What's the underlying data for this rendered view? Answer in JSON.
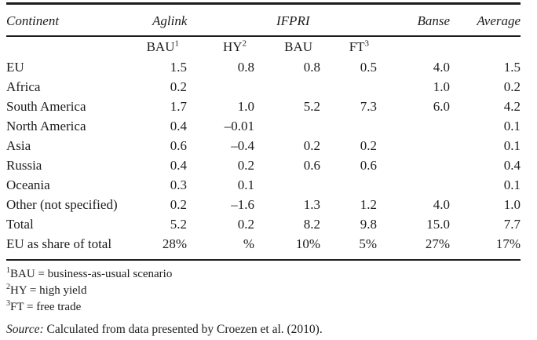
{
  "page": {
    "background": "#ffffff",
    "text_color": "#1c1c1c"
  },
  "table": {
    "continent_header": "Continent",
    "group_headers": [
      {
        "label": "Aglink"
      },
      {
        "label": "IFPRI"
      },
      {
        "label": "Banse"
      },
      {
        "label": "Average"
      }
    ],
    "subheaders": [
      {
        "base": "BAU",
        "sup": "1"
      },
      {
        "base": "HY",
        "sup": "2"
      },
      {
        "base": "BAU",
        "sup": ""
      },
      {
        "base": "FT",
        "sup": "3"
      }
    ],
    "rows": [
      {
        "continent": "EU",
        "values": [
          "1.5",
          "0.8",
          "0.8",
          "0.5",
          "4.0",
          "1.5"
        ]
      },
      {
        "continent": "Africa",
        "values": [
          "0.2",
          "",
          "",
          "",
          "1.0",
          "0.2"
        ]
      },
      {
        "continent": "South America",
        "values": [
          "1.7",
          "1.0",
          "5.2",
          "7.3",
          "6.0",
          "4.2"
        ]
      },
      {
        "continent": "North America",
        "values": [
          "0.4",
          "–0.01",
          "",
          "",
          "",
          "0.1"
        ]
      },
      {
        "continent": "Asia",
        "values": [
          "0.6",
          "–0.4",
          "0.2",
          "0.2",
          "",
          "0.1"
        ]
      },
      {
        "continent": "Russia",
        "values": [
          "0.4",
          "0.2",
          "0.6",
          "0.6",
          "",
          "0.4"
        ]
      },
      {
        "continent": "Oceania",
        "values": [
          "0.3",
          "0.1",
          "",
          "",
          "",
          "0.1"
        ]
      },
      {
        "continent": "Other (not specified)",
        "values": [
          "0.2",
          "–1.6",
          "1.3",
          "1.2",
          "4.0",
          "1.0"
        ]
      },
      {
        "continent": "Total",
        "values": [
          "5.2",
          "0.2",
          "8.2",
          "9.8",
          "15.0",
          "7.7"
        ]
      },
      {
        "continent": "EU as share of total",
        "values": [
          "28%",
          "%",
          "10%",
          "5%",
          "27%",
          "17%"
        ]
      }
    ],
    "footnotes": [
      {
        "sup": "1",
        "text": "BAU = business-as-usual scenario"
      },
      {
        "sup": "2",
        "text": "HY = high yield"
      },
      {
        "sup": "3",
        "text": "FT = free trade"
      }
    ],
    "source_label": "Source:",
    "source_text": " Calculated from data presented by Croezen et al. (2010)."
  },
  "chart_data": {
    "type": "table",
    "title": "",
    "columns": [
      "Continent",
      "Aglink BAU",
      "Aglink HY",
      "IFPRI BAU",
      "IFPRI FT",
      "Banse",
      "Average"
    ],
    "rows": [
      [
        "EU",
        "1.5",
        "0.8",
        "0.8",
        "0.5",
        "4.0",
        "1.5"
      ],
      [
        "Africa",
        "0.2",
        "",
        "",
        "",
        "1.0",
        "0.2"
      ],
      [
        "South America",
        "1.7",
        "1.0",
        "5.2",
        "7.3",
        "6.0",
        "4.2"
      ],
      [
        "North America",
        "0.4",
        "-0.01",
        "",
        "",
        "",
        "0.1"
      ],
      [
        "Asia",
        "0.6",
        "-0.4",
        "0.2",
        "0.2",
        "",
        "0.1"
      ],
      [
        "Russia",
        "0.4",
        "0.2",
        "0.6",
        "0.6",
        "",
        "0.4"
      ],
      [
        "Oceania",
        "0.3",
        "0.1",
        "",
        "",
        "",
        "0.1"
      ],
      [
        "Other (not specified)",
        "0.2",
        "-1.6",
        "1.3",
        "1.2",
        "4.0",
        "1.0"
      ],
      [
        "Total",
        "5.2",
        "0.2",
        "8.2",
        "9.8",
        "15.0",
        "7.7"
      ],
      [
        "EU as share of total",
        "28%",
        "%",
        "10%",
        "5%",
        "27%",
        "17%"
      ]
    ],
    "footnotes": [
      "BAU = business-as-usual scenario",
      "HY = high yield",
      "FT = free trade"
    ],
    "source": "Calculated from data presented by Croezen et al. (2010)."
  }
}
